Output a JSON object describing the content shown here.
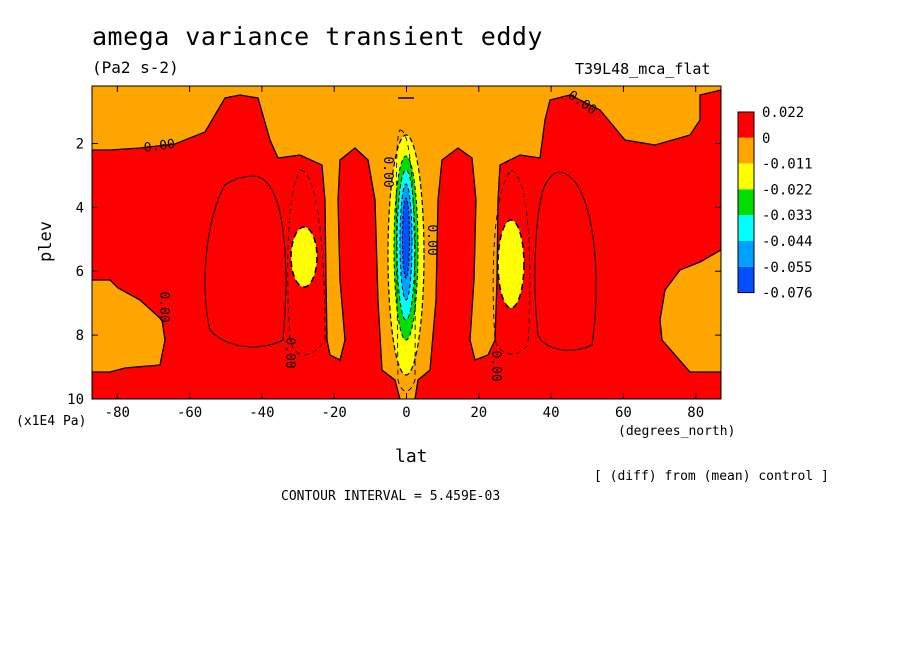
{
  "header": {
    "title": "amega variance transient eddy",
    "units": "(Pa2 s-2)",
    "run": "T39L48_mca_flat"
  },
  "axes": {
    "ylabel": "plev",
    "yunit": "(x1E4 Pa)",
    "xlabel": "lat",
    "xunit": "(degrees_north)"
  },
  "footer": {
    "diff_note": "[ (diff) from (mean) control ]",
    "contour_interval": "CONTOUR INTERVAL = 5.459E-03"
  },
  "chart_data": {
    "type": "heatmap",
    "plot_style": "filled contour",
    "title": "amega variance transient eddy",
    "units": "(Pa2 s-2)",
    "xlabel": "lat",
    "ylabel": "plev",
    "xlim": [
      -87,
      87
    ],
    "ylim": [
      0.2,
      10
    ],
    "y_inverted": true,
    "x_ticks": [
      "-80",
      "-60",
      "-40",
      "-20",
      "0",
      "20",
      "40",
      "60",
      "80"
    ],
    "x_tick_values": [
      -80,
      -60,
      -40,
      -20,
      0,
      20,
      40,
      60,
      80
    ],
    "y_ticks": [
      "2",
      "4",
      "6",
      "8",
      "10"
    ],
    "y_tick_values": [
      2,
      4,
      6,
      8,
      10
    ],
    "contour_labels": [
      "0.00",
      "0.00",
      "0.00",
      "0.00",
      "0.00",
      "0.00",
      "0.00"
    ],
    "colorbar": {
      "labels": [
        "0.022",
        "0",
        "-0.011",
        "-0.022",
        "-0.033",
        "-0.044",
        "-0.055",
        "-0.076"
      ],
      "colors": [
        "#ff0000",
        "#ffa500",
        "#ffff00",
        "#00dd00",
        "#00ffff",
        "#00a0ff",
        "#0050ff"
      ]
    },
    "features": [
      {
        "name": "near-equator negative band",
        "lat_range": [
          -5,
          5
        ],
        "plev_range": [
          1.8,
          9.4
        ],
        "min_level": "-0.076"
      },
      {
        "name": "southern subtropical minimum",
        "lat": -30,
        "plev_range": [
          4.5,
          7.3
        ],
        "level": "-0.022"
      },
      {
        "name": "northern subtropical minimum",
        "lat": 30,
        "plev_range": [
          4.5,
          7.5
        ],
        "level": "-0.022"
      },
      {
        "name": "southern mid-latitude positive region",
        "lat_range": [
          -70,
          -35
        ],
        "plev_range": [
          0.2,
          10
        ],
        "level": "0.022"
      },
      {
        "name": "northern mid-latitude positive region",
        "lat_range": [
          35,
          85
        ],
        "plev_range": [
          0.2,
          10
        ],
        "level": "0.022"
      }
    ]
  }
}
